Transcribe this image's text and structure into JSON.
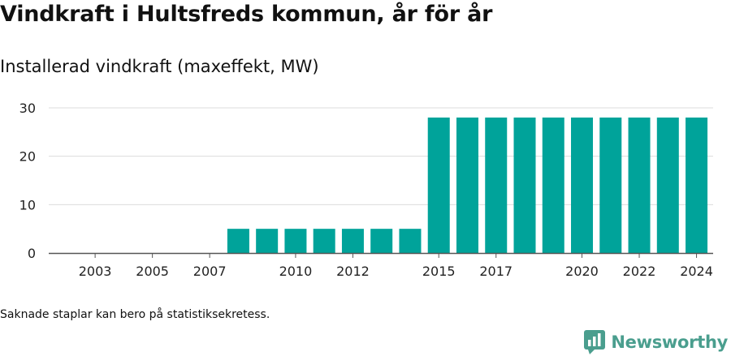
{
  "title": "Vindkraft i Hultsfreds kommun, år för år",
  "subtitle": "Installerad vindkraft (maxeffekt, MW)",
  "footnote": "Saknade staplar kan bero på statistiksekretess.",
  "brand": {
    "name": "Newsworthy",
    "color": "#4a9e8e",
    "icon": "newsworthy-logo-icon"
  },
  "colors": {
    "bar": "#00a39a",
    "grid": "#dcdcdc",
    "axis": "#555555"
  },
  "chart_data": {
    "type": "bar",
    "title": "Vindkraft i Hultsfreds kommun, år för år",
    "subtitle": "Installerad vindkraft (maxeffekt, MW)",
    "xlabel": "",
    "ylabel": "",
    "categories": [
      "2002",
      "2003",
      "2004",
      "2005",
      "2006",
      "2007",
      "2008",
      "2009",
      "2010",
      "2011",
      "2012",
      "2013",
      "2014",
      "2015",
      "2016",
      "2017",
      "2018",
      "2019",
      "2020",
      "2021",
      "2022",
      "2023",
      "2024"
    ],
    "values": [
      null,
      null,
      null,
      null,
      null,
      null,
      5,
      5,
      5,
      5,
      5,
      5,
      5,
      28,
      28,
      28,
      28,
      28,
      28,
      28,
      28,
      28,
      28
    ],
    "xtick_labels": [
      "2003",
      "2005",
      "2007",
      "2010",
      "2012",
      "2015",
      "2017",
      "2020",
      "2022",
      "2024"
    ],
    "yticks": [
      0,
      10,
      20,
      30
    ],
    "ylim": [
      0,
      30
    ],
    "grid": true,
    "legend": "none"
  }
}
